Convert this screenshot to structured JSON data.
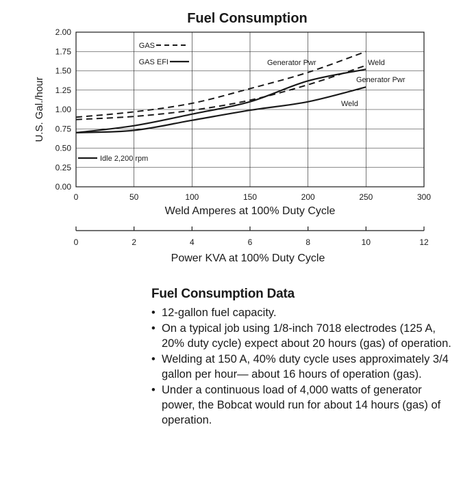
{
  "chart_data": {
    "type": "line",
    "title": "Fuel Consumption",
    "xlabel": "Weld Amperes at 100% Duty Cycle",
    "ylabel": "U.S. Gal./hour",
    "xlim": [
      0,
      300
    ],
    "ylim": [
      0,
      2.0
    ],
    "x_ticks": [
      "0",
      "50",
      "100",
      "150",
      "200",
      "250",
      "300"
    ],
    "y_ticks": [
      "0.00",
      "0.25",
      "0.50",
      "0.75",
      "1.00",
      "1.25",
      "1.50",
      "1.75",
      "2.00"
    ],
    "secondary_axis": {
      "label": "Power KVA at 100% Duty Cycle",
      "range": [
        0,
        12
      ],
      "ticks": [
        "0",
        "2",
        "4",
        "6",
        "8",
        "10",
        "12"
      ]
    },
    "grid": true,
    "legend": [
      {
        "label": "GAS",
        "style": "dashed"
      },
      {
        "label": "GAS EFI",
        "style": "solid"
      }
    ],
    "idle_label": "Idle 2,200 rpm",
    "series": [
      {
        "name": "Generator Pwr",
        "fuel": "GAS",
        "style": "dashed",
        "x": [
          0,
          50,
          100,
          150,
          200,
          250
        ],
        "values": [
          0.9,
          0.97,
          1.08,
          1.27,
          1.48,
          1.75
        ]
      },
      {
        "name": "Weld",
        "fuel": "GAS",
        "style": "dashed",
        "x": [
          0,
          50,
          100,
          150,
          200,
          250
        ],
        "values": [
          0.87,
          0.91,
          0.99,
          1.12,
          1.32,
          1.57
        ]
      },
      {
        "name": "Generator Pwr",
        "fuel": "GAS EFI",
        "style": "solid",
        "x": [
          0,
          50,
          100,
          150,
          200,
          250
        ],
        "values": [
          0.7,
          0.79,
          0.94,
          1.1,
          1.37,
          1.52
        ]
      },
      {
        "name": "Weld",
        "fuel": "GAS EFI",
        "style": "solid",
        "x": [
          0,
          50,
          100,
          150,
          200,
          250
        ],
        "values": [
          0.7,
          0.73,
          0.86,
          0.99,
          1.1,
          1.29
        ]
      }
    ],
    "annotations": [
      "Generator Pwr",
      "Weld",
      "Generator Pwr",
      "Weld"
    ]
  },
  "notes": {
    "heading": "Fuel Consumption Data",
    "items": [
      "12-gallon fuel capacity.",
      "On a typical job using 1/8-inch 7018 electrodes (125 A, 20% duty cycle) expect about 20 hours (gas) of operation.",
      "Welding at 150 A, 40% duty cycle uses approximately 3/4 gallon per hour— about 16 hours of operation (gas).",
      "Under a continuous load of 4,000 watts of generator power, the Bobcat would run for about 14 hours (gas) of operation."
    ]
  },
  "colors": {
    "ink": "#1a1a1a",
    "grid": "#1a1a1a"
  }
}
